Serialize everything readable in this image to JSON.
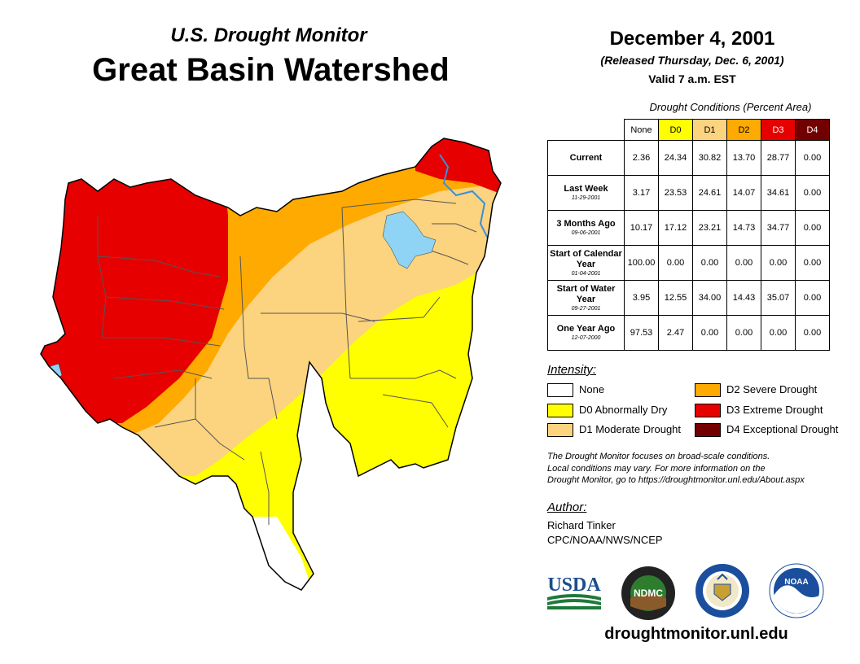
{
  "header": {
    "subtitle": "U.S. Drought Monitor",
    "title": "Great Basin Watershed"
  },
  "release": {
    "date": "December 4, 2001",
    "released": "(Released Thursday, Dec. 6, 2001)",
    "valid": "Valid 7 a.m. EST"
  },
  "table": {
    "caption": "Drought Conditions (Percent Area)",
    "columns": [
      "None",
      "D0",
      "D1",
      "D2",
      "D3",
      "D4"
    ],
    "column_colors": [
      "#ffffff",
      "#ffff00",
      "#fcd37f",
      "#ffaa00",
      "#e60000",
      "#730000"
    ],
    "rows": [
      {
        "label": "Current",
        "date": "",
        "values": [
          "2.36",
          "24.34",
          "30.82",
          "13.70",
          "28.77",
          "0.00"
        ]
      },
      {
        "label": "Last Week",
        "date": "11-29-2001",
        "values": [
          "3.17",
          "23.53",
          "24.61",
          "14.07",
          "34.61",
          "0.00"
        ]
      },
      {
        "label": "3 Months Ago",
        "date": "09-06-2001",
        "values": [
          "10.17",
          "17.12",
          "23.21",
          "14.73",
          "34.77",
          "0.00"
        ]
      },
      {
        "label": "Start of Calendar Year",
        "date": "01-04-2001",
        "values": [
          "100.00",
          "0.00",
          "0.00",
          "0.00",
          "0.00",
          "0.00"
        ]
      },
      {
        "label": "Start of Water Year",
        "date": "09-27-2001",
        "values": [
          "3.95",
          "12.55",
          "34.00",
          "14.43",
          "35.07",
          "0.00"
        ]
      },
      {
        "label": "One Year Ago",
        "date": "12-07-2000",
        "values": [
          "97.53",
          "2.47",
          "0.00",
          "0.00",
          "0.00",
          "0.00"
        ]
      }
    ]
  },
  "legend": {
    "title": "Intensity:",
    "items": [
      {
        "label": "None",
        "color": "#ffffff"
      },
      {
        "label": "D0 Abnormally Dry",
        "color": "#ffff00"
      },
      {
        "label": "D1 Moderate Drought",
        "color": "#fcd37f"
      },
      {
        "label": "D2 Severe Drought",
        "color": "#ffaa00"
      },
      {
        "label": "D3 Extreme Drought",
        "color": "#e60000"
      },
      {
        "label": "D4 Exceptional Drought",
        "color": "#730000"
      }
    ]
  },
  "note": {
    "line1": "The Drought Monitor focuses on broad-scale conditions.",
    "line2": "Local conditions may vary. For more information on the",
    "line3": "Drought Monitor, go to https://droughtmonitor.unl.edu/About.aspx"
  },
  "author": {
    "label": "Author:",
    "name": "Richard Tinker",
    "org": "CPC/NOAA/NWS/NCEP"
  },
  "logos": {
    "usda": "USDA",
    "ndmc": "NDMC",
    "noaa": "NOAA"
  },
  "website": "droughtmonitor.unl.edu",
  "map_colors": {
    "none": "#ffffff",
    "d0": "#ffff00",
    "d1": "#fcd37f",
    "d2": "#ffaa00",
    "d3": "#e60000",
    "water": "#8fd3f5",
    "river": "#3a8fd8"
  }
}
